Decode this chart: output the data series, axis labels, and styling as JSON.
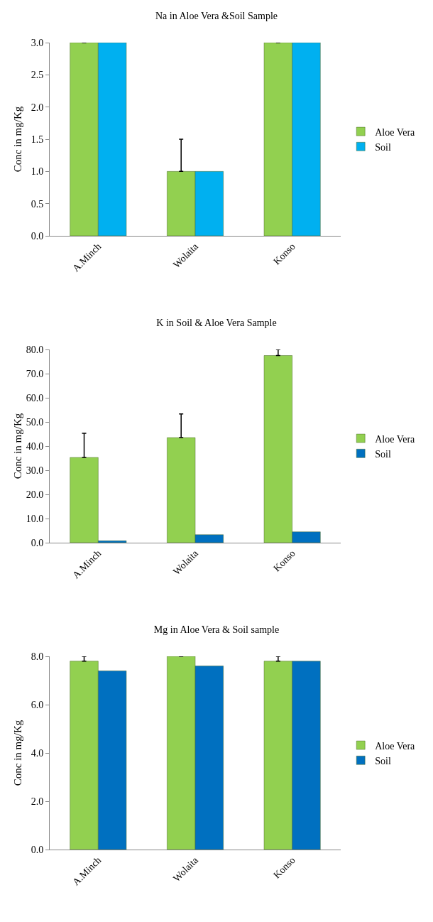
{
  "chart_data": [
    {
      "type": "bar",
      "title": "Na in Aloe Vera &Soil Sample",
      "ylabel": "Conc in mg/Kg",
      "categories": [
        "A.Minch",
        "Wolaita",
        "Konso"
      ],
      "series": [
        {
          "name": "Aloe Vera",
          "color": "#92d050",
          "values": [
            3.0,
            1.0,
            3.0
          ],
          "errors": [
            null,
            [
              1.0,
              1.5
            ],
            null
          ]
        },
        {
          "name": "Soil",
          "color": "#00b0f0",
          "values": [
            3.0,
            1.0,
            3.0
          ]
        }
      ],
      "ylim": [
        0,
        3
      ],
      "yticks": [
        {
          "value": 0,
          "label": "0.0"
        },
        0.5,
        {
          "value": 1,
          "label": "1.0"
        },
        1.5,
        {
          "value": 2,
          "label": "2.0"
        },
        2.5,
        {
          "value": 3,
          "label": "3.0"
        }
      ],
      "grid": false,
      "legend": "right"
    },
    {
      "type": "bar",
      "title": "K in Soil & Aloe Vera Sample",
      "ylabel": "Conc in mg/Kg",
      "categories": [
        "A.Minch",
        "Wolaita",
        "Konso"
      ],
      "series": [
        {
          "name": "Aloe Vera",
          "color": "#92d050",
          "values": [
            35.3,
            43.5,
            77.5
          ],
          "errors": [
            [
              35.3,
              45.3
            ],
            [
              43.5,
              53.3
            ],
            [
              77.5,
              80.0
            ]
          ]
        },
        {
          "name": "Soil",
          "color": "#0070c0",
          "values": [
            0.8,
            3.3,
            4.5
          ]
        }
      ],
      "ylim": [
        0,
        80
      ],
      "yticks": [
        {
          "value": 0,
          "label": "0.0"
        },
        {
          "value": 10,
          "label": "10.0"
        },
        {
          "value": 20,
          "label": "20.0"
        },
        {
          "value": 30,
          "label": "30.0"
        },
        {
          "value": 40,
          "label": "40.0"
        },
        {
          "value": 50,
          "label": "50.0"
        },
        {
          "value": 60,
          "label": "60.0"
        },
        {
          "value": 70,
          "label": "70.0"
        },
        {
          "value": 80,
          "label": "80.0"
        }
      ],
      "grid": false,
      "legend": "right"
    },
    {
      "type": "bar",
      "title": "Mg in Aloe Vera & Soil sample",
      "ylabel": "Conc in mg/Kg",
      "categories": [
        "A.Minch",
        "Wolaita",
        "Konso"
      ],
      "series": [
        {
          "name": "Aloe Vera",
          "color": "#92d050",
          "values": [
            7.8,
            8.0,
            7.8
          ],
          "errors": [
            [
              7.8,
              8.0
            ],
            null,
            [
              7.8,
              8.0
            ]
          ]
        },
        {
          "name": "Soil",
          "color": "#0070c0",
          "values": [
            7.4,
            7.6,
            7.8
          ]
        }
      ],
      "ylim": [
        0,
        8
      ],
      "yticks": [
        {
          "value": 0,
          "label": "0.0"
        },
        {
          "value": 2,
          "label": "2.0"
        },
        {
          "value": 4,
          "label": "4.0"
        },
        {
          "value": 6,
          "label": "6.0"
        },
        {
          "value": 8,
          "label": "8.0"
        }
      ],
      "grid": false,
      "legend": "right"
    }
  ]
}
